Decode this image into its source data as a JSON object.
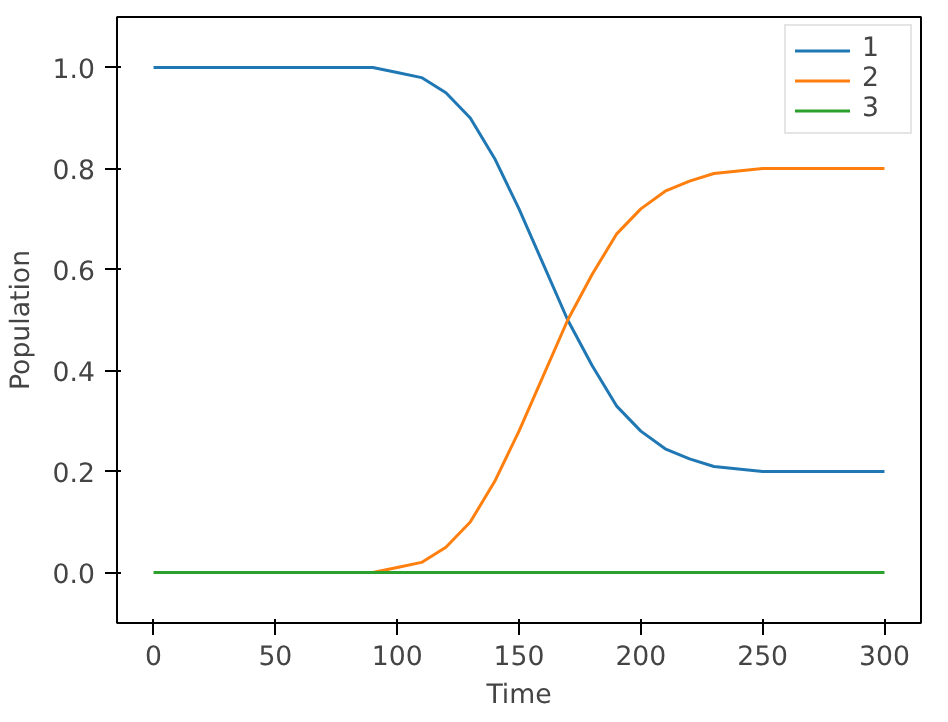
{
  "chart_data": {
    "type": "line",
    "xlabel": "Time",
    "ylabel": "Population",
    "x": [
      0,
      10,
      20,
      30,
      40,
      50,
      60,
      70,
      80,
      90,
      100,
      110,
      120,
      130,
      140,
      150,
      160,
      170,
      180,
      190,
      200,
      210,
      220,
      230,
      240,
      250,
      260,
      270,
      280,
      290,
      300
    ],
    "series": [
      {
        "name": "1",
        "color": "#1f77b4",
        "values": [
          1.0,
          1.0,
          1.0,
          1.0,
          1.0,
          1.0,
          1.0,
          1.0,
          1.0,
          1.0,
          0.99,
          0.98,
          0.95,
          0.9,
          0.82,
          0.72,
          0.61,
          0.5,
          0.41,
          0.33,
          0.28,
          0.245,
          0.225,
          0.21,
          0.205,
          0.2,
          0.2,
          0.2,
          0.2,
          0.2,
          0.2
        ]
      },
      {
        "name": "2",
        "color": "#ff7f0e",
        "x": [
          90,
          100,
          110,
          120,
          130,
          140,
          150,
          160,
          170,
          180,
          190,
          200,
          210,
          220,
          230,
          240,
          250,
          260,
          270,
          280,
          290,
          300
        ],
        "values": [
          0,
          0.01,
          0.02,
          0.05,
          0.1,
          0.18,
          0.28,
          0.39,
          0.5,
          0.59,
          0.67,
          0.72,
          0.755,
          0.775,
          0.79,
          0.795,
          0.8,
          0.8,
          0.8,
          0.8,
          0.8,
          0.8
        ]
      },
      {
        "name": "3",
        "color": "#2ca02c",
        "values": [
          0,
          0,
          0,
          0,
          0,
          0,
          0,
          0,
          0,
          0,
          0,
          0,
          0,
          0,
          0,
          0,
          0,
          0,
          0,
          0,
          0,
          0,
          0,
          0,
          0,
          0,
          0,
          0,
          0,
          0,
          0
        ]
      }
    ],
    "xlim": [
      -15,
      315
    ],
    "ylim": [
      -0.1,
      1.1
    ],
    "xticks": [
      0,
      50,
      100,
      150,
      200,
      250,
      300
    ],
    "yticks": [
      {
        "value": 0,
        "label": "0.0"
      },
      {
        "value": 0.2,
        "label": "0.2"
      },
      {
        "value": 0.4,
        "label": "0.4"
      },
      {
        "value": 0.6,
        "label": "0.6"
      },
      {
        "value": 0.8,
        "label": "0.8"
      },
      {
        "value": 1.0,
        "label": "1.0"
      }
    ],
    "grid": false,
    "legend": "top right"
  }
}
